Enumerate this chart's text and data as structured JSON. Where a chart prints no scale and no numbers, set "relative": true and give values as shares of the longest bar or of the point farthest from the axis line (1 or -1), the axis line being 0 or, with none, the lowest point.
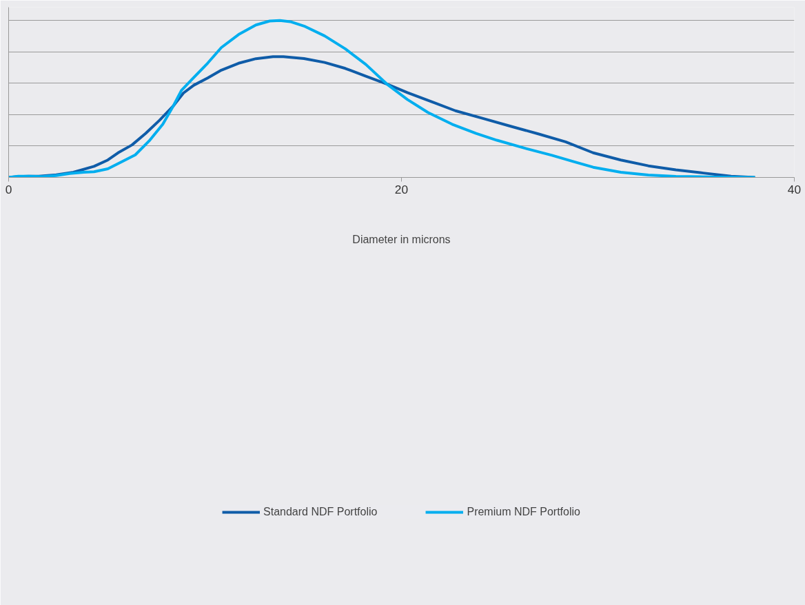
{
  "chart_data": {
    "type": "line",
    "xlabel": "Diameter in microns",
    "relative": true,
    "xlim": [
      0,
      40
    ],
    "xticks": [
      0,
      20,
      40
    ],
    "grid": "y",
    "legend": "bottom",
    "line_style": "solid",
    "marker": "none",
    "series": [
      {
        "name": "Standard NDF Portfolio",
        "color": "#0f5ca8",
        "x": [
          0,
          0.49,
          1.02,
          1.54,
          2.42,
          3.3,
          4.35,
          5.05,
          5.57,
          6.28,
          6.98,
          7.68,
          8.38,
          8.9,
          9.43,
          10.13,
          10.83,
          11.71,
          12.59,
          13.46,
          13.99,
          15.04,
          16.09,
          17.14,
          18.19,
          19.25,
          20.3,
          21.7,
          22.75,
          24.15,
          25.56,
          26.96,
          28.36,
          29.76,
          31.17,
          32.57,
          33.97,
          35.37,
          36.78,
          38.0
        ],
        "values": [
          0,
          0.005,
          0.008,
          0.008,
          0.017,
          0.033,
          0.071,
          0.111,
          0.157,
          0.207,
          0.281,
          0.364,
          0.455,
          0.538,
          0.588,
          0.634,
          0.684,
          0.728,
          0.757,
          0.77,
          0.77,
          0.758,
          0.733,
          0.695,
          0.645,
          0.596,
          0.541,
          0.475,
          0.425,
          0.376,
          0.326,
          0.278,
          0.227,
          0.157,
          0.111,
          0.074,
          0.048,
          0.028,
          0.008,
          0
        ]
      },
      {
        "name": "Premium NDF Portfolio",
        "color": "#00aeef",
        "x": [
          0,
          0.49,
          1.02,
          1.72,
          2.42,
          3.12,
          3.82,
          4.35,
          5.05,
          5.57,
          6.45,
          7.15,
          7.85,
          8.38,
          8.8,
          9.43,
          10.13,
          10.83,
          11.71,
          12.59,
          13.29,
          13.81,
          14.34,
          15.04,
          16.09,
          17.14,
          18.19,
          19.25,
          20.3,
          21.35,
          22.58,
          23.8,
          24.86,
          26.26,
          27.66,
          28.71,
          29.76,
          31.17,
          32.57,
          33.97,
          36.07,
          38.0
        ],
        "values": [
          0,
          0.008,
          0.008,
          0.005,
          0.012,
          0.025,
          0.033,
          0.036,
          0.055,
          0.088,
          0.144,
          0.232,
          0.339,
          0.455,
          0.555,
          0.637,
          0.728,
          0.828,
          0.911,
          0.972,
          0.997,
          1.0,
          0.993,
          0.965,
          0.902,
          0.82,
          0.72,
          0.596,
          0.497,
          0.414,
          0.339,
          0.281,
          0.237,
          0.187,
          0.141,
          0.103,
          0.065,
          0.033,
          0.015,
          0.007,
          0.002,
          0
        ]
      }
    ]
  }
}
